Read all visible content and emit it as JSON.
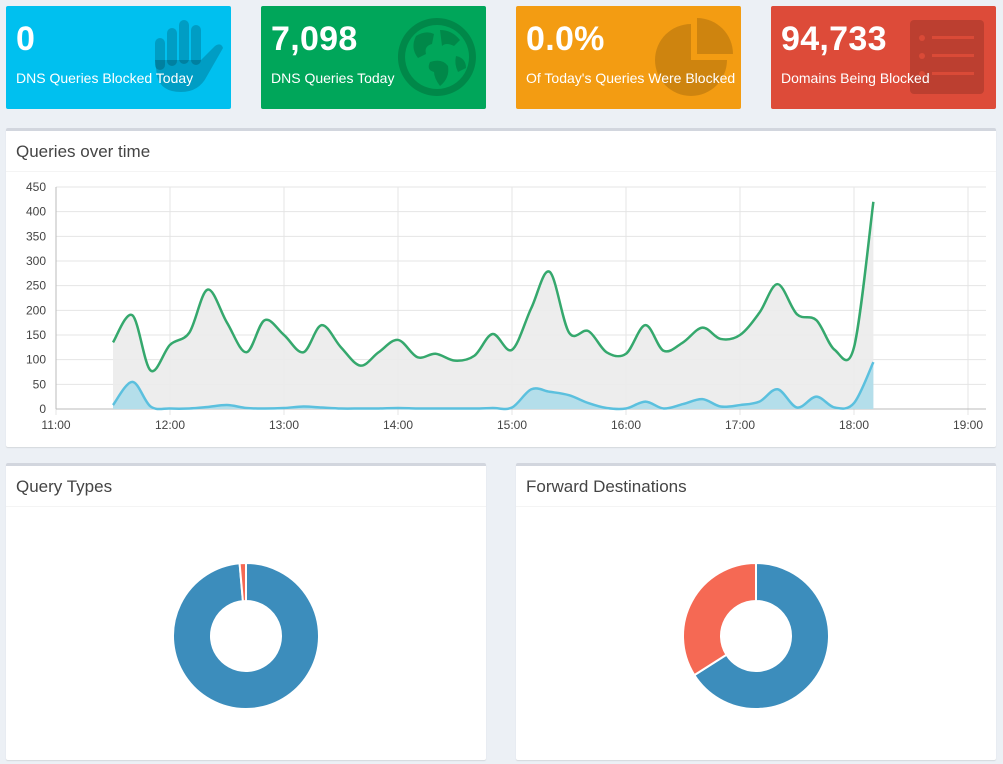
{
  "stats": [
    {
      "value": "0",
      "label": "DNS Queries Blocked Today",
      "color": "#00c0ef",
      "icon": "hand-icon"
    },
    {
      "value": "7,098",
      "label": "DNS Queries Today",
      "color": "#00a65a",
      "icon": "globe-icon"
    },
    {
      "value": "0.0%",
      "label": "Of Today's Queries Were Blocked",
      "color": "#f39c12",
      "icon": "pie-chart-icon"
    },
    {
      "value": "94,733",
      "label": "Domains Being Blocked",
      "color": "#dd4b39",
      "icon": "list-icon"
    }
  ],
  "queries_panel": {
    "title": "Queries over time"
  },
  "query_types_panel": {
    "title": "Query Types"
  },
  "forward_panel": {
    "title": "Forward Destinations"
  },
  "chart_data": [
    {
      "type": "line",
      "title": "Queries over time",
      "ylim": [
        0,
        450
      ],
      "y_ticks": [
        0,
        50,
        100,
        150,
        200,
        250,
        300,
        350,
        400,
        450
      ],
      "x_ticks": [
        "11:00",
        "12:00",
        "13:00",
        "14:00",
        "15:00",
        "16:00",
        "17:00",
        "18:00",
        "19:00"
      ],
      "x_range": [
        11.0,
        19.0
      ],
      "grid": true,
      "x": [
        11.5,
        11.67,
        11.83,
        12.0,
        12.17,
        12.33,
        12.5,
        12.67,
        12.83,
        13.0,
        13.17,
        13.33,
        13.5,
        13.67,
        13.83,
        14.0,
        14.17,
        14.33,
        14.5,
        14.67,
        14.83,
        15.0,
        15.17,
        15.33,
        15.5,
        15.67,
        15.83,
        16.0,
        16.17,
        16.33,
        16.5,
        16.67,
        16.83,
        17.0,
        17.17,
        17.33,
        17.5,
        17.67,
        17.83,
        18.0,
        18.17
      ],
      "series": [
        {
          "color": "#35a86d",
          "fill": "#ebebeb",
          "values": [
            135,
            190,
            78,
            130,
            155,
            242,
            175,
            115,
            180,
            150,
            115,
            170,
            125,
            88,
            115,
            140,
            105,
            112,
            98,
            108,
            152,
            120,
            205,
            278,
            155,
            158,
            115,
            112,
            170,
            118,
            135,
            165,
            142,
            150,
            195,
            253,
            192,
            180,
            120,
            125,
            420
          ]
        },
        {
          "color": "#5bc0de",
          "fill": "#a9dbe9",
          "values": [
            8,
            55,
            5,
            1,
            1,
            4,
            8,
            2,
            1,
            2,
            5,
            3,
            1,
            1,
            1,
            2,
            1,
            1,
            1,
            1,
            2,
            3,
            40,
            35,
            28,
            12,
            2,
            1,
            15,
            1,
            10,
            20,
            5,
            8,
            15,
            40,
            3,
            25,
            3,
            12,
            95
          ]
        }
      ]
    },
    {
      "type": "pie",
      "title": "Query Types",
      "slices": [
        {
          "value": 98.6,
          "color": "#3c8dbc"
        },
        {
          "value": 1.4,
          "color": "#f56954"
        }
      ]
    },
    {
      "type": "pie",
      "title": "Forward Destinations",
      "slices": [
        {
          "value": 66,
          "color": "#3c8dbc"
        },
        {
          "value": 34,
          "color": "#f56954"
        }
      ]
    }
  ]
}
